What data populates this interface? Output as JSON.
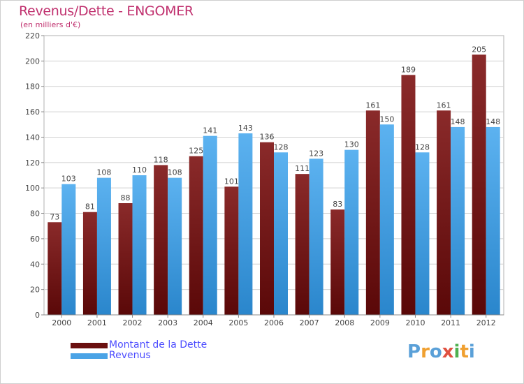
{
  "title": "Revenus/Dette - ENGOMER",
  "subtitle": "(en milliers d'€)",
  "chart_data": {
    "type": "bar",
    "title": "Revenus/Dette - ENGOMER",
    "subtitle": "(en milliers d'€)",
    "xlabel": "",
    "ylabel": "",
    "ylim": [
      0,
      220
    ],
    "yticks": [
      0,
      20,
      40,
      60,
      80,
      100,
      120,
      140,
      160,
      180,
      200,
      220
    ],
    "grid": true,
    "legend_position": "bottom-left",
    "categories": [
      "2000",
      "2001",
      "2002",
      "2003",
      "2004",
      "2005",
      "2006",
      "2007",
      "2008",
      "2009",
      "2010",
      "2011",
      "2012"
    ],
    "series": [
      {
        "name": "Montant de la Dette",
        "color": "#7a1a1a",
        "values": [
          73,
          81,
          88,
          118,
          125,
          101,
          136,
          111,
          83,
          161,
          189,
          161,
          205
        ]
      },
      {
        "name": "Revenus",
        "color": "#4aa3e6",
        "values": [
          103,
          108,
          110,
          108,
          141,
          143,
          128,
          123,
          130,
          150,
          128,
          148,
          148
        ]
      }
    ]
  },
  "legend": {
    "debt_label": "Montant de la Dette",
    "revenue_label": "Revenus"
  },
  "logo": {
    "letters": [
      "P",
      "r",
      "o",
      "x",
      "i",
      "t",
      "i"
    ],
    "colors": [
      "#5aa0d8",
      "#f0a030",
      "#5aa0d8",
      "#e05040",
      "#50b050",
      "#f0a030",
      "#5aa0d8"
    ]
  }
}
